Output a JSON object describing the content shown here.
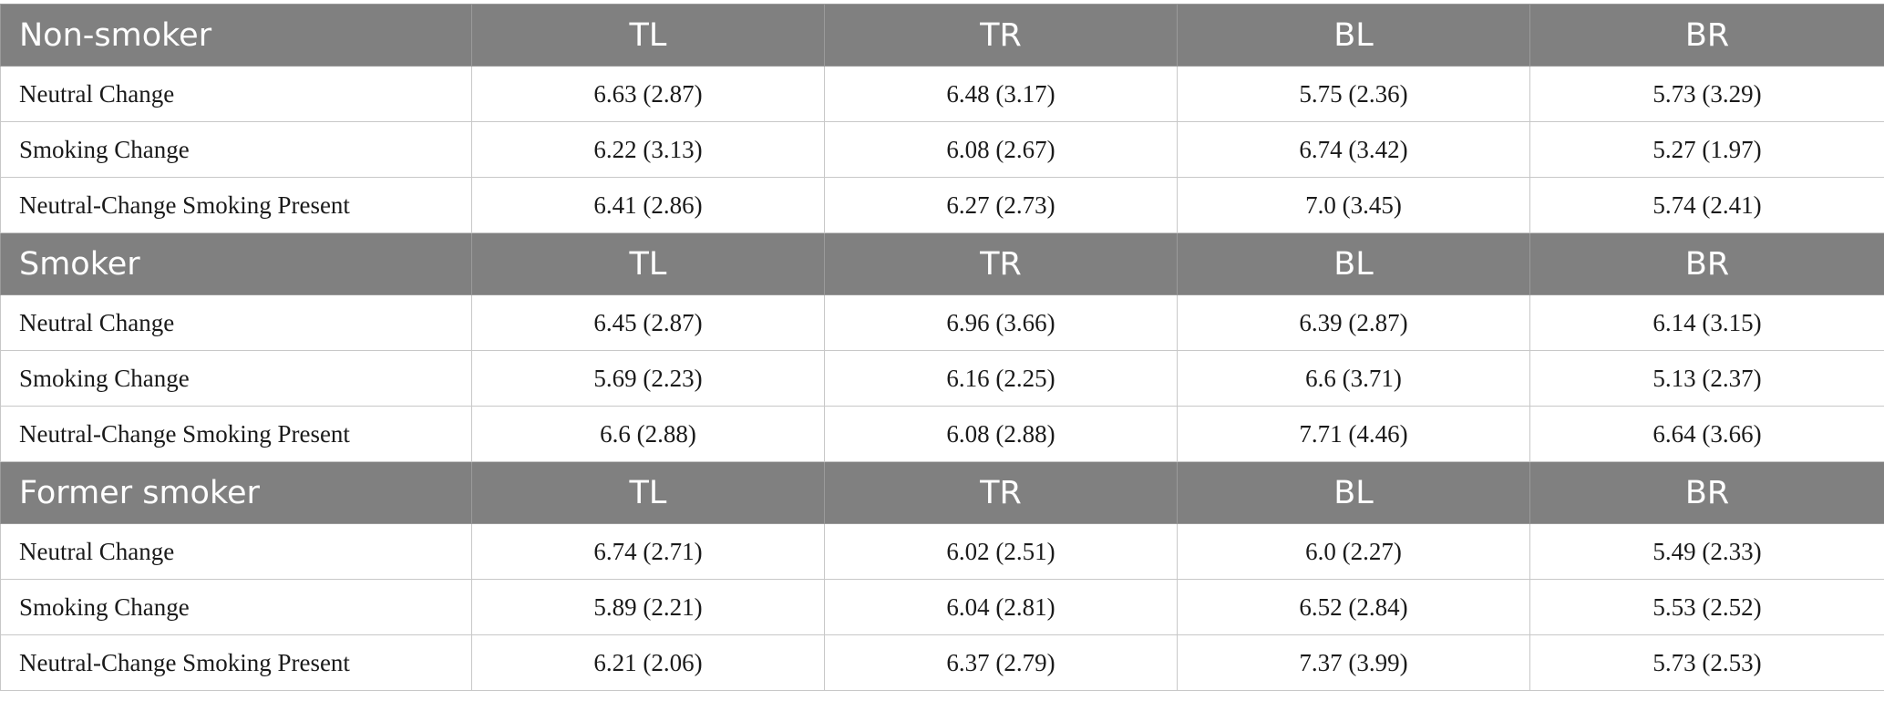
{
  "columns": [
    "TL",
    "TR",
    "BL",
    "BR"
  ],
  "groups": [
    {
      "title": "Non-smoker",
      "rows": [
        {
          "label": "Neutral Change",
          "values": [
            "6.63 (2.87)",
            "6.48 (3.17)",
            "5.75 (2.36)",
            "5.73 (3.29)"
          ]
        },
        {
          "label": "Smoking Change",
          "values": [
            "6.22 (3.13)",
            "6.08 (2.67)",
            "6.74 (3.42)",
            "5.27 (1.97)"
          ]
        },
        {
          "label": "Neutral-Change Smoking Present",
          "values": [
            "6.41 (2.86)",
            "6.27 (2.73)",
            "7.0 (3.45)",
            "5.74 (2.41)"
          ]
        }
      ]
    },
    {
      "title": "Smoker",
      "rows": [
        {
          "label": "Neutral Change",
          "values": [
            "6.45 (2.87)",
            "6.96 (3.66)",
            "6.39 (2.87)",
            "6.14 (3.15)"
          ]
        },
        {
          "label": "Smoking Change",
          "values": [
            "5.69 (2.23)",
            "6.16 (2.25)",
            "6.6 (3.71)",
            "5.13 (2.37)"
          ]
        },
        {
          "label": "Neutral-Change Smoking Present",
          "values": [
            "6.6 (2.88)",
            "6.08 (2.88)",
            "7.71 (4.46)",
            "6.64 (3.66)"
          ]
        }
      ]
    },
    {
      "title": "Former smoker",
      "rows": [
        {
          "label": "Neutral Change",
          "values": [
            "6.74 (2.71)",
            "6.02 (2.51)",
            "6.0 (2.27)",
            "5.49 (2.33)"
          ]
        },
        {
          "label": "Smoking Change",
          "values": [
            "5.89 (2.21)",
            "6.04 (2.81)",
            "6.52 (2.84)",
            "5.53 (2.52)"
          ]
        },
        {
          "label": "Neutral-Change Smoking Present",
          "values": [
            "6.21 (2.06)",
            "6.37 (2.79)",
            "7.37 (3.99)",
            "5.73 (2.53)"
          ]
        }
      ]
    }
  ]
}
